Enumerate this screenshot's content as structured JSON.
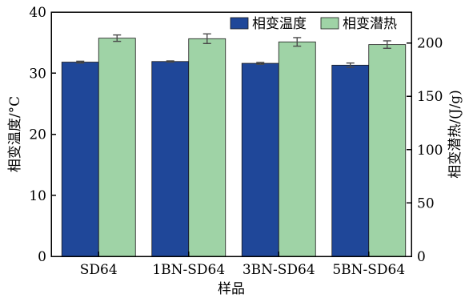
{
  "chart_data": {
    "type": "bar",
    "categories": [
      "SD64",
      "1BN-SD64",
      "3BN-SD64",
      "5BN-SD64"
    ],
    "xlabel": "样品",
    "ylabel_left": "相变温度/°C",
    "ylabel_right": "相变潜热/(J/g)",
    "ylim_left": [
      0,
      40
    ],
    "ylim_right": [
      0,
      229
    ],
    "yticks_left": [
      0,
      10,
      20,
      30,
      40
    ],
    "yticks_right": [
      0,
      50,
      100,
      150,
      200
    ],
    "legend_position": "top-right",
    "series": [
      {
        "name": "相变温度",
        "axis": "left",
        "color": "#1f4799",
        "values": [
          31.8,
          31.9,
          31.6,
          31.3
        ],
        "errors": [
          0.15,
          0.1,
          0.15,
          0.35
        ]
      },
      {
        "name": "相变潜热",
        "axis": "right",
        "color": "#9fd3a6",
        "values": [
          204.5,
          204,
          201,
          198.5
        ],
        "errors": [
          3,
          4.5,
          4,
          3.5
        ]
      }
    ],
    "grid": false
  }
}
